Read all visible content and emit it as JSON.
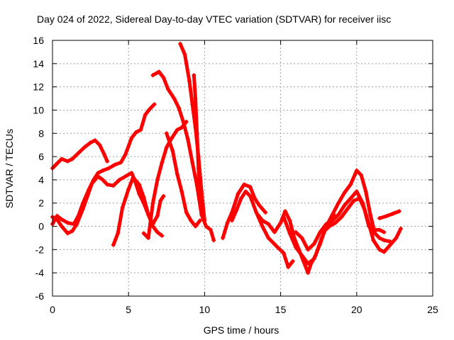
{
  "chart_data": {
    "type": "scatter",
    "title": "Day 024 of 2022, Sidereal Day-to-day VTEC variation (SDTVAR) for receiver iisc",
    "xlabel": "GPS time / hours",
    "ylabel": "SDTVAR / TECUs",
    "xlim": [
      0,
      25
    ],
    "ylim": [
      -6,
      16
    ],
    "xticks": [
      0,
      5,
      10,
      15,
      20,
      25
    ],
    "yticks": [
      -6,
      -4,
      -2,
      0,
      2,
      4,
      6,
      8,
      10,
      12,
      14,
      16
    ],
    "grid": true,
    "legend": "none",
    "marker": "+",
    "color": "#ff0000",
    "series": [
      {
        "points": [
          [
            0.0,
            5.0
          ],
          [
            0.3,
            5.4
          ],
          [
            0.6,
            5.8
          ],
          [
            1.0,
            5.6
          ],
          [
            1.3,
            5.8
          ],
          [
            1.7,
            6.3
          ],
          [
            2.1,
            6.8
          ],
          [
            2.5,
            7.2
          ],
          [
            2.8,
            7.4
          ],
          [
            3.1,
            7.0
          ],
          [
            3.4,
            6.2
          ],
          [
            3.6,
            5.6
          ]
        ]
      },
      {
        "points": [
          [
            0.0,
            0.8
          ],
          [
            0.3,
            0.6
          ],
          [
            0.6,
            0.0
          ],
          [
            1.0,
            -0.6
          ],
          [
            1.3,
            -0.4
          ],
          [
            1.6,
            0.2
          ],
          [
            2.0,
            1.5
          ],
          [
            2.3,
            2.6
          ],
          [
            2.6,
            3.7
          ],
          [
            3.0,
            4.3
          ],
          [
            3.3,
            4.0
          ],
          [
            3.6,
            3.6
          ],
          [
            4.0,
            3.5
          ],
          [
            4.4,
            4.0
          ],
          [
            4.8,
            4.3
          ],
          [
            5.2,
            4.6
          ],
          [
            5.4,
            4.0
          ],
          [
            5.7,
            2.8
          ],
          [
            6.0,
            2.0
          ],
          [
            6.3,
            1.0
          ],
          [
            6.6,
            0.0
          ],
          [
            6.9,
            -0.5
          ],
          [
            7.2,
            -0.8
          ]
        ]
      },
      {
        "points": [
          [
            0.0,
            0.2
          ],
          [
            0.3,
            0.9
          ],
          [
            0.6,
            0.6
          ],
          [
            1.0,
            0.3
          ],
          [
            1.4,
            0.2
          ],
          [
            1.7,
            0.9
          ],
          [
            2.0,
            2.0
          ],
          [
            2.4,
            3.2
          ],
          [
            2.7,
            4.0
          ],
          [
            3.0,
            4.6
          ],
          [
            3.3,
            4.8
          ],
          [
            3.7,
            5.0
          ],
          [
            4.1,
            5.3
          ],
          [
            4.5,
            5.5
          ],
          [
            4.8,
            6.2
          ],
          [
            5.2,
            7.6
          ],
          [
            5.5,
            8.1
          ],
          [
            5.8,
            8.3
          ],
          [
            6.1,
            9.6
          ],
          [
            6.4,
            10.1
          ],
          [
            6.7,
            10.5
          ]
        ]
      },
      {
        "points": [
          [
            4.0,
            -1.6
          ],
          [
            4.3,
            -0.6
          ],
          [
            4.6,
            1.6
          ],
          [
            5.0,
            3.2
          ],
          [
            5.3,
            4.2
          ],
          [
            5.7,
            3.6
          ],
          [
            6.0,
            2.5
          ],
          [
            6.3,
            1.0
          ],
          [
            6.6,
            0.2
          ],
          [
            6.9,
            0.9
          ],
          [
            7.1,
            2.2
          ],
          [
            7.3,
            2.6
          ]
        ]
      },
      {
        "points": [
          [
            6.0,
            -0.6
          ],
          [
            6.3,
            -1.0
          ],
          [
            6.6,
            2.0
          ],
          [
            6.9,
            4.0
          ],
          [
            7.2,
            5.5
          ],
          [
            7.5,
            6.8
          ],
          [
            7.8,
            7.5
          ],
          [
            8.2,
            8.3
          ],
          [
            8.5,
            8.5
          ],
          [
            8.8,
            9.0
          ]
        ]
      },
      {
        "points": [
          [
            6.6,
            13.0
          ],
          [
            7.0,
            13.3
          ],
          [
            7.3,
            12.8
          ],
          [
            7.6,
            11.8
          ],
          [
            8.0,
            11.0
          ],
          [
            8.3,
            10.2
          ],
          [
            8.6,
            9.0
          ],
          [
            8.9,
            7.5
          ],
          [
            9.2,
            5.5
          ],
          [
            9.5,
            3.5
          ],
          [
            9.8,
            1.0
          ],
          [
            10.1,
            0.0
          ],
          [
            10.4,
            -0.3
          ],
          [
            10.6,
            -1.2
          ]
        ]
      },
      {
        "points": [
          [
            8.4,
            15.7
          ],
          [
            8.7,
            14.8
          ],
          [
            9.0,
            12.5
          ],
          [
            9.2,
            10.5
          ],
          [
            9.4,
            8.5
          ],
          [
            9.6,
            6.0
          ],
          [
            9.8,
            3.0
          ],
          [
            10.0,
            0.5
          ]
        ]
      },
      {
        "points": [
          [
            9.3,
            13.0
          ],
          [
            9.4,
            11.0
          ],
          [
            9.5,
            8.0
          ],
          [
            9.6,
            5.0
          ],
          [
            9.7,
            2.5
          ],
          [
            9.8,
            1.5
          ]
        ]
      },
      {
        "points": [
          [
            7.5,
            8.0
          ],
          [
            7.9,
            6.5
          ],
          [
            8.2,
            4.5
          ],
          [
            8.5,
            3.0
          ],
          [
            8.8,
            1.2
          ],
          [
            9.1,
            0.5
          ],
          [
            9.4,
            0.0
          ],
          [
            9.7,
            0.5
          ]
        ]
      },
      {
        "points": [
          [
            11.2,
            -1.0
          ],
          [
            11.5,
            0.3
          ],
          [
            11.8,
            1.2
          ],
          [
            12.2,
            2.8
          ],
          [
            12.6,
            3.6
          ],
          [
            13.0,
            3.4
          ],
          [
            13.3,
            2.4
          ],
          [
            13.6,
            1.8
          ],
          [
            14.0,
            1.2
          ]
        ]
      },
      {
        "points": [
          [
            11.8,
            0.5
          ],
          [
            12.1,
            1.4
          ],
          [
            12.4,
            2.4
          ],
          [
            12.7,
            3.0
          ],
          [
            13.0,
            2.6
          ],
          [
            13.4,
            1.2
          ],
          [
            13.8,
            0.0
          ],
          [
            14.2,
            -1.0
          ],
          [
            14.5,
            -1.4
          ],
          [
            14.8,
            -1.8
          ],
          [
            15.2,
            -2.3
          ],
          [
            15.5,
            -3.5
          ],
          [
            15.8,
            -3.0
          ]
        ]
      },
      {
        "points": [
          [
            13.5,
            1.0
          ],
          [
            13.8,
            0.5
          ],
          [
            14.2,
            0.2
          ],
          [
            14.6,
            -0.5
          ],
          [
            15.0,
            0.3
          ],
          [
            15.3,
            1.3
          ],
          [
            15.6,
            0.5
          ],
          [
            15.9,
            -1.0
          ],
          [
            16.2,
            -2.0
          ],
          [
            16.5,
            -3.0
          ],
          [
            16.8,
            -4.0
          ],
          [
            17.0,
            -3.2
          ],
          [
            17.3,
            -2.5
          ],
          [
            17.7,
            -1.0
          ],
          [
            18.1,
            0.2
          ],
          [
            18.5,
            1.0
          ]
        ]
      },
      {
        "points": [
          [
            15.2,
            0.8
          ],
          [
            15.6,
            -0.6
          ],
          [
            16.0,
            -1.8
          ],
          [
            16.4,
            -2.5
          ],
          [
            16.8,
            -3.2
          ],
          [
            17.2,
            -2.8
          ],
          [
            17.6,
            -1.5
          ],
          [
            18.0,
            0.0
          ],
          [
            18.4,
            1.0
          ],
          [
            18.8,
            2.0
          ],
          [
            19.2,
            2.9
          ],
          [
            19.6,
            3.6
          ],
          [
            20.0,
            4.8
          ],
          [
            20.3,
            4.4
          ],
          [
            20.6,
            3.0
          ],
          [
            20.9,
            1.0
          ],
          [
            21.2,
            -0.6
          ],
          [
            21.5,
            -1.0
          ],
          [
            21.8,
            -1.2
          ],
          [
            22.2,
            -1.3
          ]
        ]
      },
      {
        "points": [
          [
            16.0,
            -0.5
          ],
          [
            16.4,
            -1.0
          ],
          [
            16.8,
            -2.0
          ],
          [
            17.2,
            -1.5
          ],
          [
            17.6,
            -0.5
          ],
          [
            18.0,
            0.2
          ],
          [
            18.4,
            0.5
          ],
          [
            18.8,
            1.0
          ],
          [
            19.2,
            1.8
          ],
          [
            19.6,
            2.4
          ],
          [
            20.0,
            3.0
          ],
          [
            20.4,
            2.0
          ],
          [
            20.8,
            0.2
          ],
          [
            21.1,
            -1.2
          ],
          [
            21.5,
            -2.0
          ],
          [
            21.8,
            -2.2
          ],
          [
            22.2,
            -1.6
          ],
          [
            22.6,
            -1.0
          ],
          [
            22.9,
            -0.2
          ]
        ]
      },
      {
        "points": [
          [
            17.8,
            -0.5
          ],
          [
            18.2,
            0.0
          ],
          [
            18.6,
            0.3
          ],
          [
            19.0,
            0.8
          ],
          [
            19.4,
            1.5
          ],
          [
            19.8,
            2.2
          ],
          [
            20.2,
            2.4
          ],
          [
            20.5,
            1.5
          ],
          [
            20.8,
            0.0
          ],
          [
            21.1,
            -0.3
          ],
          [
            21.5,
            -0.3
          ],
          [
            21.8,
            -0.5
          ]
        ]
      },
      {
        "points": [
          [
            21.5,
            0.7
          ],
          [
            22.0,
            0.9
          ],
          [
            22.4,
            1.1
          ],
          [
            22.8,
            1.3
          ]
        ]
      }
    ]
  }
}
